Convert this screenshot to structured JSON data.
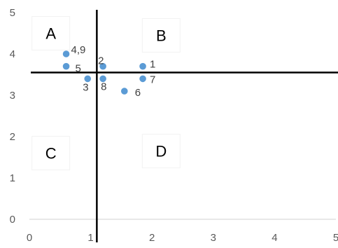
{
  "chart_data": {
    "type": "scatter",
    "title": "",
    "xlabel": "",
    "ylabel": "",
    "xlim": [
      0,
      5
    ],
    "ylim": [
      0,
      5
    ],
    "x_ticks": [
      "0",
      "1",
      "2",
      "3",
      "4",
      "5"
    ],
    "y_ticks": [
      "0",
      "1",
      "2",
      "3",
      "4",
      "5"
    ],
    "grid": false,
    "legend": "none",
    "marker_color": "#5B9BD5",
    "points": [
      {
        "label": "4,9",
        "x": 0.6,
        "y": 4.0
      },
      {
        "label": "5",
        "x": 0.6,
        "y": 3.7
      },
      {
        "label": "2",
        "x": 1.2,
        "y": 3.7
      },
      {
        "label": "1",
        "x": 1.85,
        "y": 3.7
      },
      {
        "label": "7",
        "x": 1.85,
        "y": 3.4
      },
      {
        "label": "3",
        "x": 0.95,
        "y": 3.4
      },
      {
        "label": "8",
        "x": 1.2,
        "y": 3.4
      },
      {
        "label": "6",
        "x": 1.55,
        "y": 3.1
      }
    ],
    "divider_lines": {
      "vertical_x": 1.1,
      "horizontal_y": 3.55,
      "color": "#000000"
    },
    "quadrant_labels": [
      {
        "text": "A",
        "x": 0.35,
        "y": 4.5
      },
      {
        "text": "B",
        "x": 2.15,
        "y": 4.45
      },
      {
        "text": "C",
        "x": 0.35,
        "y": 1.6
      },
      {
        "text": "D",
        "x": 2.15,
        "y": 1.65
      }
    ]
  }
}
